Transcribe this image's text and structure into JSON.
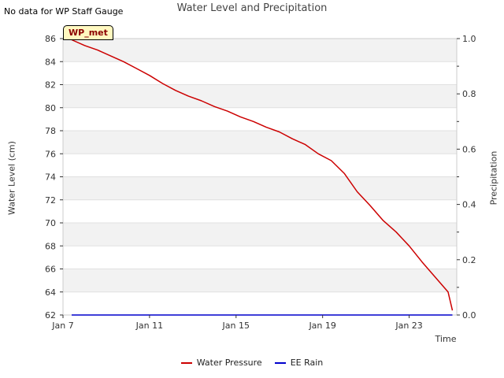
{
  "note": "No data for WP Staff Gauge",
  "badge": "WP_met",
  "colors": {
    "water_pressure": "#cc0000",
    "ee_rain": "#0000cc",
    "band": "#f2f2f2"
  },
  "chart_data": {
    "type": "line",
    "title": "Water Level and Precipitation",
    "xlabel": "Time",
    "ylabel": "Water Level (cm)",
    "ylabel_right": "Precipitation",
    "x_ticks": [
      "Jan 7",
      "Jan 11",
      "Jan 15",
      "Jan 19",
      "Jan 23"
    ],
    "x_tick_values": [
      7,
      11,
      15,
      19,
      23
    ],
    "xlim": [
      7,
      25.2
    ],
    "ylim": [
      62,
      86
    ],
    "y_ticks": [
      "62",
      "64",
      "66",
      "68",
      "70",
      "72",
      "74",
      "76",
      "78",
      "80",
      "82",
      "84",
      "86"
    ],
    "y2lim": [
      0,
      1
    ],
    "y2_ticks": [
      "0.0",
      "0.2",
      "0.4",
      "0.6",
      "0.8",
      "1.0"
    ],
    "y2_tick_values": [
      0,
      0.2,
      0.4,
      0.6,
      0.8,
      1.0
    ],
    "legend_position": "bottom",
    "series": [
      {
        "name": "Water Pressure",
        "axis": "left",
        "x": [
          7.4,
          8.0,
          8.6,
          9.2,
          9.8,
          10.4,
          11.0,
          11.6,
          12.2,
          12.8,
          13.4,
          14.0,
          14.6,
          15.2,
          15.8,
          16.4,
          17.0,
          17.6,
          18.2,
          18.8,
          19.4,
          20.0,
          20.6,
          21.2,
          21.8,
          22.4,
          23.0,
          23.6,
          24.2,
          24.8,
          25.0
        ],
        "y": [
          85.9,
          85.4,
          85.0,
          84.5,
          84.0,
          83.4,
          82.8,
          82.1,
          81.5,
          81.0,
          80.6,
          80.1,
          79.7,
          79.2,
          78.8,
          78.3,
          77.9,
          77.3,
          76.8,
          76.0,
          75.4,
          74.3,
          72.7,
          71.5,
          70.2,
          69.2,
          68.0,
          66.6,
          65.3,
          64.0,
          62.4
        ]
      },
      {
        "name": "EE Rain",
        "axis": "right",
        "x": [
          7.4,
          25.0
        ],
        "y": [
          0,
          0
        ]
      }
    ]
  }
}
